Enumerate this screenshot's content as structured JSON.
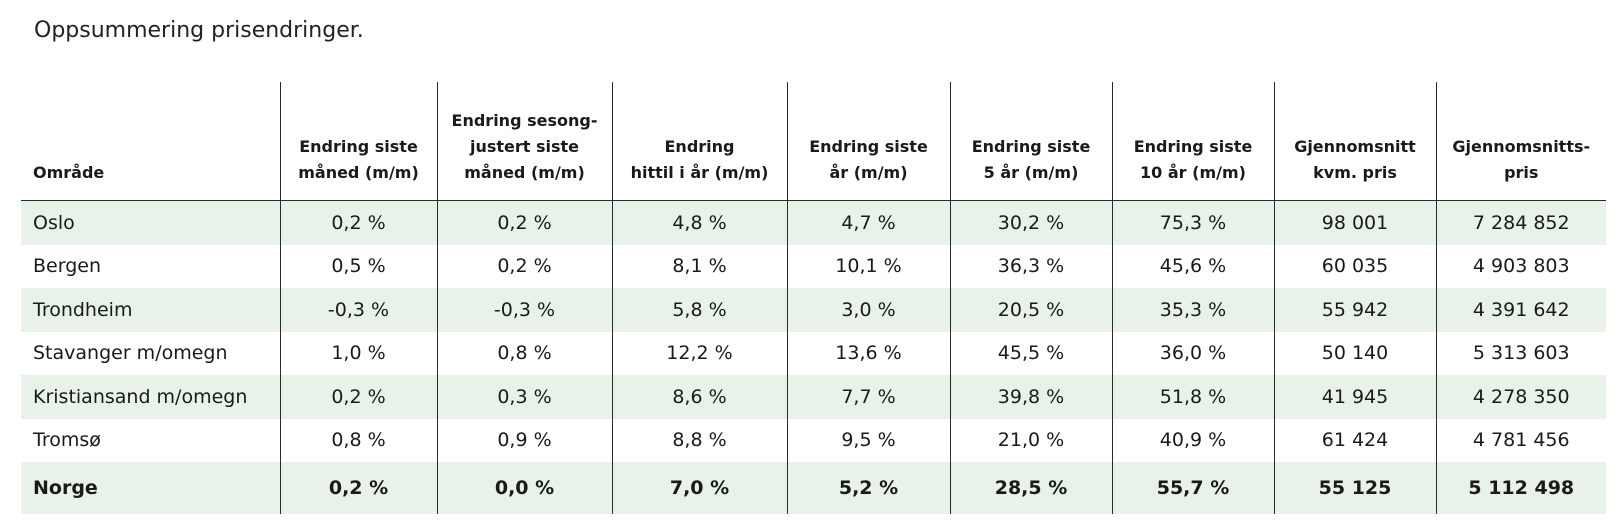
{
  "title": "Oppsummering prisendringer.",
  "table": {
    "headers": [
      [
        "Område"
      ],
      [
        "Endring siste",
        "måned (m/m)"
      ],
      [
        "Endring sesong-",
        "justert siste",
        "måned (m/m)"
      ],
      [
        "Endring",
        "hittil i år (m/m)"
      ],
      [
        "Endring siste",
        "år (m/m)"
      ],
      [
        "Endring siste",
        "5 år (m/m)"
      ],
      [
        "Endring siste",
        "10 år (m/m)"
      ],
      [
        "Gjennomsnitt",
        "kvm. pris"
      ],
      [
        "Gjennomsnitts-",
        "pris"
      ]
    ],
    "rows": [
      [
        "Oslo",
        "0,2 %",
        "0,2 %",
        "4,8 %",
        "4,7 %",
        "30,2 %",
        "75,3 %",
        "98 001",
        "7 284 852"
      ],
      [
        "Bergen",
        "0,5 %",
        "0,2 %",
        "8,1 %",
        "10,1 %",
        "36,3 %",
        "45,6 %",
        "60 035",
        "4 903 803"
      ],
      [
        "Trondheim",
        "-0,3 %",
        "-0,3 %",
        "5,8 %",
        "3,0 %",
        "20,5 %",
        "35,3 %",
        "55 942",
        "4 391 642"
      ],
      [
        "Stavanger m/omegn",
        "1,0 %",
        "0,8 %",
        "12,2 %",
        "13,6 %",
        "45,5 %",
        "36,0 %",
        "50 140",
        "5 313 603"
      ],
      [
        "Kristiansand m/omegn",
        "0,2 %",
        "0,3 %",
        "8,6 %",
        "7,7 %",
        "39,8 %",
        "51,8 %",
        "41 945",
        "4 278 350"
      ],
      [
        "Tromsø",
        "0,8 %",
        "0,9 %",
        "8,8 %",
        "9,5 %",
        "21,0 %",
        "40,9 %",
        "61 424",
        "4 781 456"
      ]
    ],
    "total": [
      "Norge",
      "0,2 %",
      "0,0 %",
      "7,0 %",
      "5,2 %",
      "28,5 %",
      "55,7 %",
      "55 125",
      "5 112 498"
    ]
  },
  "colors": {
    "row_shade": "#e8f2e8",
    "grid_line": "#2a2a2a"
  }
}
